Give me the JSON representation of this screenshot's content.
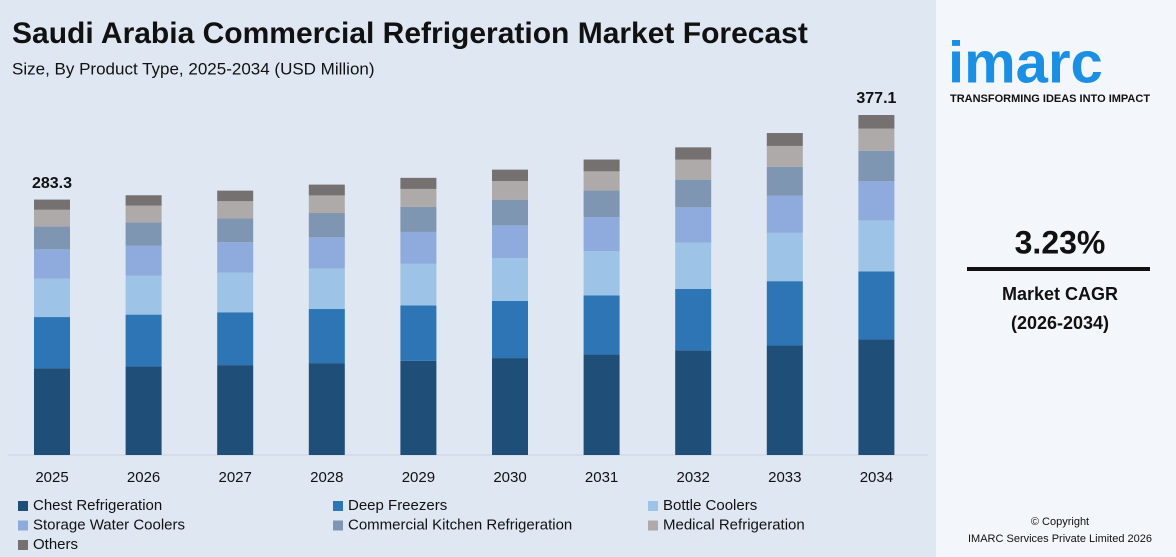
{
  "chart_data": {
    "type": "stacked_bar",
    "title": "Saudi Arabia Commercial Refrigeration Market Forecast",
    "subtitle": "Size, By Product Type, 2025-2034 (USD Million)",
    "categories": [
      "2025",
      "2026",
      "2027",
      "2028",
      "2029",
      "2030",
      "2031",
      "2032",
      "2033",
      "2034"
    ],
    "series": [
      {
        "name": "Chest Refrigeration",
        "color": "#1f4e79",
        "values": [
          96.3,
          98.1,
          99.7,
          101.9,
          104.4,
          107.5,
          111.4,
          116.1,
          121.4,
          128.2
        ]
      },
      {
        "name": "Deep Freezers",
        "color": "#2e75b6",
        "values": [
          56.7,
          57.6,
          58.6,
          60.0,
          61.5,
          63.3,
          65.5,
          68.2,
          71.4,
          75.4
        ]
      },
      {
        "name": "Bottle Coolers",
        "color": "#9dc3e6",
        "values": [
          42.5,
          43.2,
          44.0,
          45.0,
          46.1,
          47.5,
          49.2,
          51.2,
          53.6,
          56.6
        ]
      },
      {
        "name": "Storage Water Coolers",
        "color": "#8faadc",
        "values": [
          32.6,
          33.1,
          33.7,
          34.5,
          35.4,
          36.4,
          37.7,
          39.2,
          41.1,
          43.4
        ]
      },
      {
        "name": "Commercial Kitchen Refrigeration",
        "color": "#7f96b2",
        "values": [
          25.5,
          25.9,
          26.4,
          27.0,
          27.7,
          28.5,
          29.5,
          30.7,
          32.1,
          33.9
        ]
      },
      {
        "name": "Medical Refrigeration",
        "color": "#aeaaaa",
        "values": [
          18.4,
          18.7,
          19.1,
          19.5,
          20.0,
          20.6,
          21.3,
          22.2,
          23.2,
          24.5
        ]
      },
      {
        "name": "Others",
        "color": "#767171",
        "values": [
          11.3,
          11.5,
          11.7,
          12.0,
          12.3,
          12.7,
          13.1,
          13.6,
          14.3,
          15.1
        ]
      }
    ],
    "annotations": [
      {
        "category": "2025",
        "value": 283.3
      },
      {
        "category": "2034",
        "value": 377.1
      }
    ]
  },
  "sidebar": {
    "logo": "imarc",
    "tagline": "TRANSFORMING IDEAS INTO IMPACT",
    "cagr": "3.23%",
    "cagr_label": "Market CAGR",
    "cagr_period": "(2026-2034)",
    "copyright": "© Copyright",
    "company": "IMARC Services Private Limited 2026"
  }
}
